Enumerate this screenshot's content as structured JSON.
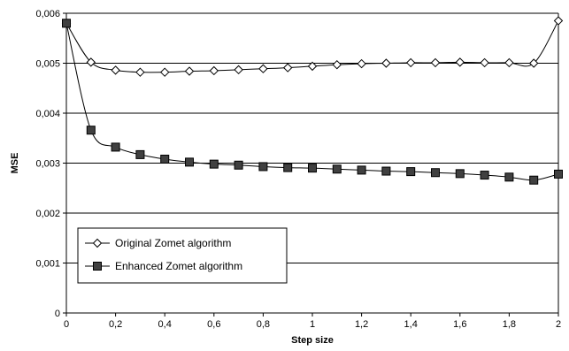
{
  "chart_data": {
    "type": "line",
    "title": "",
    "xlabel": "Step size",
    "ylabel": "MSE",
    "xlim": [
      0,
      2
    ],
    "ylim": [
      0,
      0.006
    ],
    "grid": "horizontal",
    "legend_position": "bottom-left",
    "x": [
      0,
      0.1,
      0.2,
      0.3,
      0.4,
      0.5,
      0.6,
      0.7,
      0.8,
      0.9,
      1.0,
      1.1,
      1.2,
      1.3,
      1.4,
      1.5,
      1.6,
      1.7,
      1.8,
      1.9,
      2.0
    ],
    "x_ticks": [
      "0",
      "0,2",
      "0,4",
      "0,6",
      "0,8",
      "1",
      "1,2",
      "1,4",
      "1,6",
      "1,8",
      "2"
    ],
    "y_ticks": [
      "0",
      "0,001",
      "0,002",
      "0,003",
      "0,004",
      "0,005",
      "0,006"
    ],
    "series": [
      {
        "name": "Original Zomet algorithm",
        "marker": "open-diamond",
        "color": "#000000",
        "values": [
          0.0058,
          0.00502,
          0.00486,
          0.00482,
          0.00482,
          0.00484,
          0.00485,
          0.00487,
          0.00489,
          0.00491,
          0.00494,
          0.00497,
          0.00499,
          0.005,
          0.00501,
          0.00501,
          0.00502,
          0.00501,
          0.00501,
          0.005,
          0.00585
        ]
      },
      {
        "name": "Enhanced Zomet algorithm",
        "marker": "filled-square",
        "color": "#000000",
        "values": [
          0.0058,
          0.00366,
          0.00332,
          0.00317,
          0.00308,
          0.00302,
          0.00298,
          0.00296,
          0.00293,
          0.00291,
          0.0029,
          0.00288,
          0.00286,
          0.00284,
          0.00283,
          0.00281,
          0.00279,
          0.00276,
          0.00272,
          0.00266,
          0.00278
        ]
      }
    ]
  }
}
